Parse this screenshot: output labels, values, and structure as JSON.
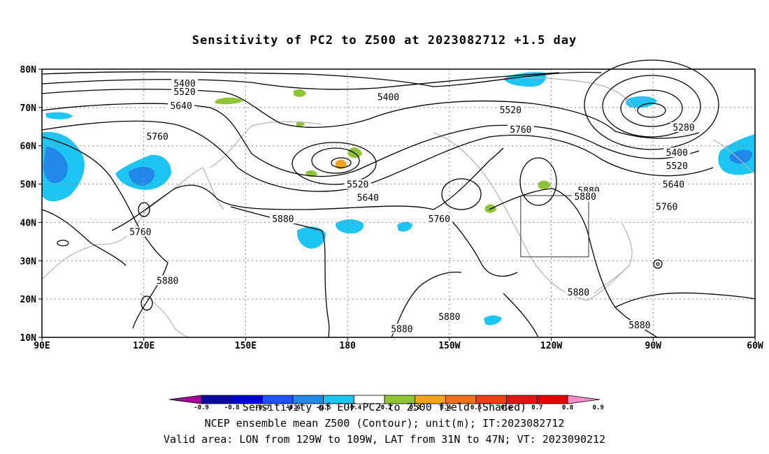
{
  "title": "Sensitivity of PC2 to Z500 at 2023082712 +1.5 day",
  "lat_ticks": [
    "80N",
    "70N",
    "60N",
    "50N",
    "40N",
    "30N",
    "20N",
    "10N"
  ],
  "lon_ticks": [
    "90E",
    "120E",
    "150E",
    "180",
    "150W",
    "120W",
    "90W",
    "60W"
  ],
  "contour_labels": [
    {
      "text": "5400",
      "lon": 132,
      "lat": 76.2
    },
    {
      "text": "5400",
      "lon": 192,
      "lat": 72.6
    },
    {
      "text": "5520",
      "lon": 132,
      "lat": 74.0
    },
    {
      "text": "5520",
      "lon": 228,
      "lat": 69.2
    },
    {
      "text": "5640",
      "lon": 131,
      "lat": 70.3
    },
    {
      "text": "5760",
      "lon": 124,
      "lat": 62.3
    },
    {
      "text": "5760",
      "lon": 231,
      "lat": 64.1
    },
    {
      "text": "5520",
      "lon": 183,
      "lat": 49.8
    },
    {
      "text": "5640",
      "lon": 186,
      "lat": 46.4
    },
    {
      "text": "5880",
      "lon": 161,
      "lat": 40.8
    },
    {
      "text": "5760",
      "lon": 207,
      "lat": 40.8
    },
    {
      "text": "5760",
      "lon": 119,
      "lat": 37.4
    },
    {
      "text": "5880",
      "lon": 251,
      "lat": 48.2
    },
    {
      "text": "5880",
      "lon": 250,
      "lat": 46.6
    },
    {
      "text": "5280",
      "lon": 279,
      "lat": 64.7
    },
    {
      "text": "5400",
      "lon": 277,
      "lat": 58.1
    },
    {
      "text": "5520",
      "lon": 277,
      "lat": 54.7
    },
    {
      "text": "5640",
      "lon": 276,
      "lat": 49.8
    },
    {
      "text": "5760",
      "lon": 274,
      "lat": 44.0
    },
    {
      "text": "5880",
      "lon": 127,
      "lat": 24.7
    },
    {
      "text": "5880",
      "lon": 196,
      "lat": 12.1
    },
    {
      "text": "5880",
      "lon": 210,
      "lat": 15.3
    },
    {
      "text": "5880",
      "lon": 248,
      "lat": 21.7
    },
    {
      "text": "5880",
      "lon": 266,
      "lat": 13.1
    }
  ],
  "colorbar": {
    "labels": [
      "-0.9",
      "-0.8",
      "-0.7",
      "-0.6",
      "-0.5",
      "-0.4",
      "-0.2",
      "0.2",
      "0.4",
      "0.5",
      "0.6",
      "0.7",
      "0.8",
      "0.9"
    ],
    "colors": [
      "#b0009a",
      "#0a0aa0",
      "#0000d6",
      "#2050ff",
      "#2188ea",
      "#1cc5f2",
      "#ffffff",
      "#8fc433",
      "#f2a41e",
      "#f0711e",
      "#f04015",
      "#e61410",
      "#e60000",
      "#f58cc8"
    ]
  },
  "footer": {
    "line1": "Sensitivity of EOF PC2 to Z500 field (Shaded)",
    "line2": "NCEP ensemble mean Z500 (Contour); unit(m); IT:2023082712",
    "line3": "Valid area: LON from 129W to 109W, LAT from 31N to 47N; VT: 2023090212"
  },
  "valid_box": {
    "lon_min": 231,
    "lon_max": 251,
    "lat_min": 31,
    "lat_max": 47
  }
}
